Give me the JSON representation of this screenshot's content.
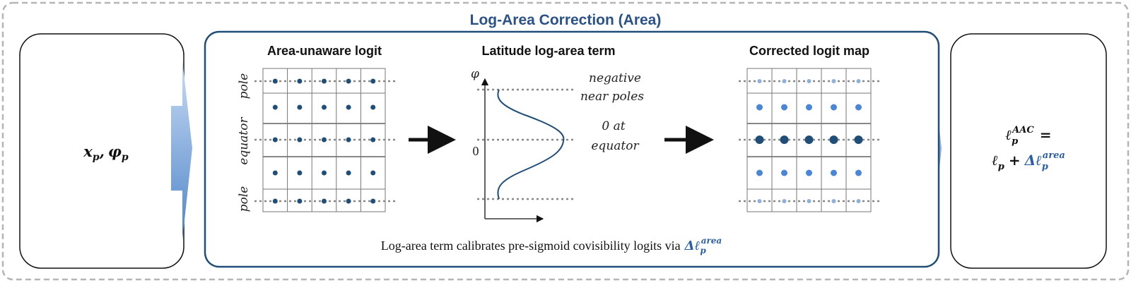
{
  "title": "Log-Area Correction (Area)",
  "input": {
    "symbols": [
      {
        "base": "x",
        "sub": "p"
      },
      {
        "base": "φ",
        "sub": "p"
      }
    ],
    "separator": ","
  },
  "panels": [
    {
      "title": "Area-unaware logit",
      "row_labels": [
        "pole",
        "equator",
        "pole"
      ]
    },
    {
      "title": "Latitude log-area term",
      "axis_label": "φ",
      "zero_label": "0",
      "annotations": [
        "negative",
        "near poles",
        "0 at",
        "equator"
      ]
    },
    {
      "title": "Corrected logit map"
    }
  ],
  "caption": {
    "text": "Log-area term calibrates pre-sigmoid covisibility logits via",
    "term": {
      "base": "Δℓ",
      "sub": "p",
      "sup": "area"
    }
  },
  "output": {
    "lhs": {
      "base": "ℓ",
      "sub": "p",
      "sup": "AAC"
    },
    "equals": "=",
    "term1": {
      "base": "ℓ",
      "sub": "p"
    },
    "plus": "+",
    "term2": {
      "base": "Δℓ",
      "sub": "p",
      "sup": "area"
    }
  }
}
